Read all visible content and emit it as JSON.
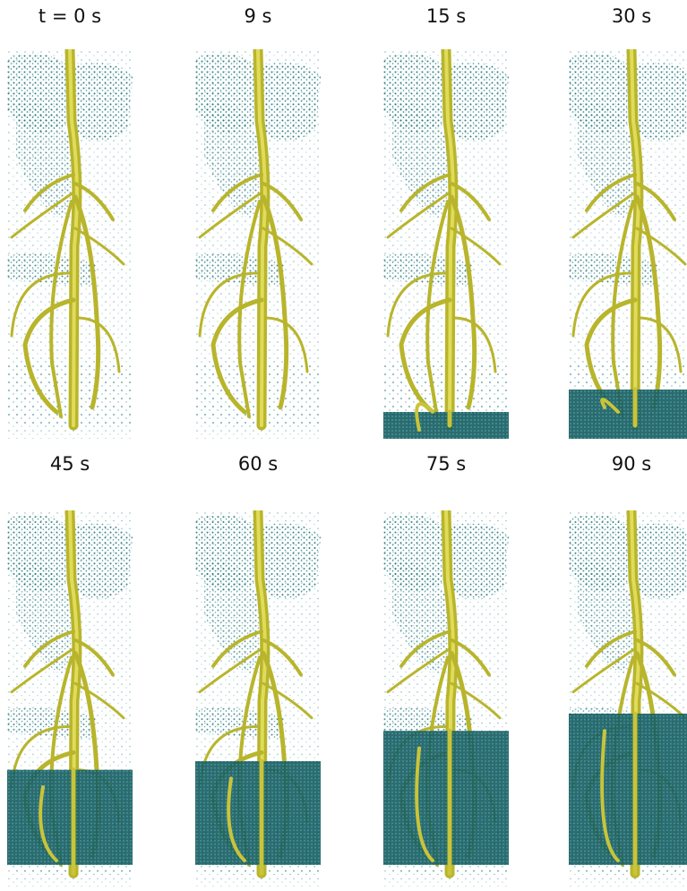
{
  "panels": [
    {
      "label": "t = 0 s"
    },
    {
      "label": "9 s"
    },
    {
      "label": "15 s"
    },
    {
      "label": "30 s"
    },
    {
      "label": "45 s"
    },
    {
      "label": "60 s"
    },
    {
      "label": "75 s"
    },
    {
      "label": "90 s"
    }
  ]
}
